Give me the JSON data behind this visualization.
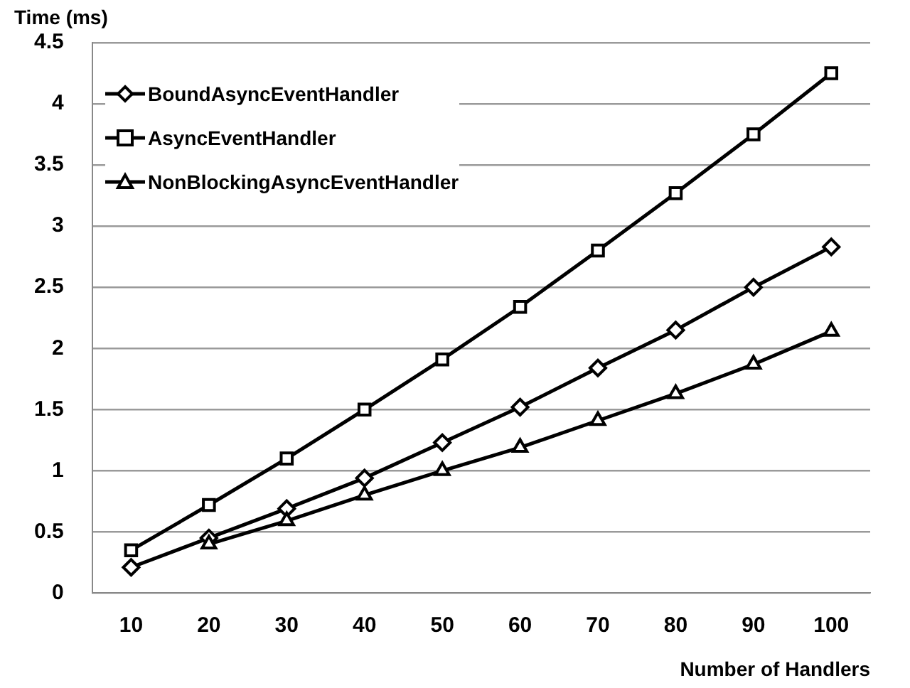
{
  "chart_data": {
    "type": "line",
    "xlabel": "Number of Handlers",
    "ylabel": "Time (ms)",
    "categories": [
      "10",
      "20",
      "30",
      "40",
      "50",
      "60",
      "70",
      "80",
      "90",
      "100"
    ],
    "series": [
      {
        "name": "BoundAsyncEventHandler",
        "color": "#000000",
        "marker": "diamond",
        "values": [
          0.21,
          0.45,
          0.69,
          0.94,
          1.23,
          1.52,
          1.84,
          2.15,
          2.5,
          2.83
        ]
      },
      {
        "name": "AsyncEventHandler",
        "color": "#000000",
        "marker": "square",
        "values": [
          0.35,
          0.72,
          1.1,
          1.5,
          1.91,
          2.34,
          2.8,
          3.27,
          3.75,
          4.25
        ]
      },
      {
        "name": "NonBlockingAsyncEventHandler",
        "color": "#000000",
        "marker": "triangle",
        "values": [
          null,
          0.4,
          0.59,
          0.8,
          1.0,
          1.19,
          1.41,
          1.63,
          1.87,
          2.14
        ]
      }
    ],
    "ylim": [
      0,
      4.5
    ],
    "yticks": [
      0,
      0.5,
      1,
      1.5,
      2,
      2.5,
      3,
      3.5,
      4,
      4.5
    ],
    "grid": "y",
    "legend": "top left",
    "line_style": "solid"
  }
}
